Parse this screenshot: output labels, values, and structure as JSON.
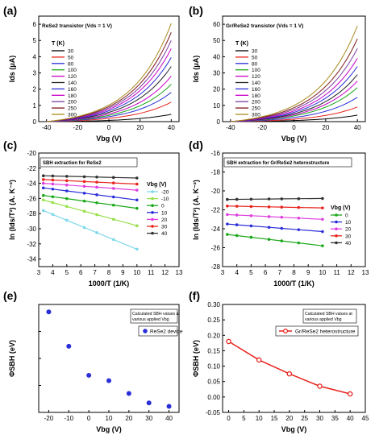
{
  "chart_data": [
    {
      "panel": "(a)",
      "type": "line",
      "annotation": "ReSe2 transistor (Vds = 1 V)",
      "legend_title": "T (K)",
      "legend_position": "top-left",
      "xlabel": "Vbg (V)",
      "ylabel": "Ids (μA)",
      "xlim": [
        -45,
        45
      ],
      "ylim": [
        0,
        6.5
      ],
      "xticks": [
        -40,
        -20,
        0,
        20,
        40
      ],
      "yticks": [
        0,
        1,
        2,
        3,
        4,
        5,
        6
      ],
      "x_start": -40,
      "x_end": 40,
      "series": [
        {
          "name": "30",
          "color": "#000000",
          "end": 0.45
        },
        {
          "name": "50",
          "color": "#e8231c",
          "end": 1.2
        },
        {
          "name": "80",
          "color": "#2a2fd8",
          "end": 1.8
        },
        {
          "name": "100",
          "color": "#1aa81a",
          "end": 2.3
        },
        {
          "name": "120",
          "color": "#c800c8",
          "end": 2.8
        },
        {
          "name": "140",
          "color": "#222222",
          "end": 3.4
        },
        {
          "name": "160",
          "color": "#2a2fd8",
          "end": 3.95
        },
        {
          "name": "180",
          "color": "#c800c8",
          "end": 4.5
        },
        {
          "name": "200",
          "color": "#7a3c9e",
          "end": 5.0
        },
        {
          "name": "250",
          "color": "#7c1a1a",
          "end": 5.5
        },
        {
          "name": "300",
          "color": "#a88a1e",
          "end": 6.05
        }
      ]
    },
    {
      "panel": "(b)",
      "type": "line",
      "annotation": "Gr/ReSe2 transistor (Vds = 1 V)",
      "legend_title": "T (K)",
      "legend_position": "top-left",
      "xlabel": "Vbg (V)",
      "ylabel": "Ids (μA)",
      "xlim": [
        -45,
        45
      ],
      "ylim": [
        0,
        65
      ],
      "xticks": [
        -40,
        -20,
        0,
        20,
        40
      ],
      "yticks": [
        0,
        10,
        20,
        30,
        40,
        50,
        60
      ],
      "x_start": -40,
      "x_end": 40,
      "series": [
        {
          "name": "30",
          "color": "#000000",
          "end": 4
        },
        {
          "name": "50",
          "color": "#e8231c",
          "end": 9
        },
        {
          "name": "80",
          "color": "#2a2fd8",
          "end": 15
        },
        {
          "name": "100",
          "color": "#1aa81a",
          "end": 21
        },
        {
          "name": "120",
          "color": "#c800c8",
          "end": 25
        },
        {
          "name": "140",
          "color": "#222222",
          "end": 29
        },
        {
          "name": "160",
          "color": "#2a2fd8",
          "end": 34
        },
        {
          "name": "180",
          "color": "#c800c8",
          "end": 39
        },
        {
          "name": "200",
          "color": "#7a3c9e",
          "end": 45
        },
        {
          "name": "250",
          "color": "#7c1a1a",
          "end": 51
        },
        {
          "name": "300",
          "color": "#a88a1e",
          "end": 59
        }
      ]
    },
    {
      "panel": "(c)",
      "type": "line",
      "annotation": "SBH extraction for ReSe2",
      "legend_title": "Vbg (V)",
      "legend_position": "right",
      "xlabel": "1000/T (1/K)",
      "ylabel": "ln (Ids/T²) (A. K⁻²)",
      "xlim": [
        3,
        13
      ],
      "ylim": [
        -35,
        -20
      ],
      "xticks": [
        3,
        4,
        5,
        6,
        7,
        8,
        9,
        10,
        11,
        12,
        13
      ],
      "yticks": [
        -34,
        -32,
        -30,
        -28,
        -26,
        -24,
        -22,
        -20
      ],
      "x": [
        3.33,
        4.0,
        5.0,
        6.25,
        7.14,
        8.33,
        10.0
      ],
      "series": [
        {
          "name": "-20",
          "color": "#7fd8ea",
          "start": -27.6,
          "end": -32.7
        },
        {
          "name": "-10",
          "color": "#96e04a",
          "start": -26.2,
          "end": -29.6
        },
        {
          "name": "0",
          "color": "#1aa81a",
          "start": -25.6,
          "end": -27.3
        },
        {
          "name": "10",
          "color": "#2a2fd8",
          "start": -24.6,
          "end": -26.2
        },
        {
          "name": "20",
          "color": "#e040e0",
          "start": -24.0,
          "end": -24.9
        },
        {
          "name": "30",
          "color": "#e8231c",
          "start": -23.5,
          "end": -24.1
        },
        {
          "name": "40",
          "color": "#333333",
          "start": -23.0,
          "end": -23.3
        }
      ]
    },
    {
      "panel": "(d)",
      "type": "line",
      "annotation": "SBH extraction for Gr/ReSe2 heterostructure",
      "legend_title": "Vbg (V)",
      "legend_position": "right",
      "xlabel": "1000/T (1/K)",
      "ylabel": "ln (Ids/T²) (A. K⁻²)",
      "xlim": [
        3,
        13
      ],
      "ylim": [
        -28,
        -16
      ],
      "xticks": [
        3,
        4,
        5,
        6,
        7,
        8,
        9,
        10,
        11,
        12,
        13
      ],
      "yticks": [
        -28,
        -26,
        -24,
        -22,
        -20,
        -18,
        -16
      ],
      "x": [
        3.33,
        4.0,
        5.0,
        6.25,
        7.14,
        8.33,
        10.0
      ],
      "series": [
        {
          "name": "0",
          "color": "#1aa81a",
          "start": -24.6,
          "end": -25.8
        },
        {
          "name": "10",
          "color": "#2a2fd8",
          "start": -23.5,
          "end": -24.3
        },
        {
          "name": "20",
          "color": "#e040e0",
          "start": -22.5,
          "end": -23.0
        },
        {
          "name": "30",
          "color": "#e8231c",
          "start": -21.6,
          "end": -21.8
        },
        {
          "name": "40",
          "color": "#333333",
          "start": -20.9,
          "end": -20.8
        }
      ]
    },
    {
      "panel": "(e)",
      "type": "scatter",
      "annotation": "Calculated SBH values at various applied Vbg",
      "legend": [
        "ReSe2 device"
      ],
      "legend_position": "top-right",
      "xlabel": "Vbg (V)",
      "ylabel": "ΦSBH (eV)",
      "xlim": [
        -25,
        45
      ],
      "ylim": [
        0,
        0.8
      ],
      "xticks": [
        -20,
        -10,
        0,
        10,
        20,
        30,
        40
      ],
      "yticks": [],
      "color": "#2a2fd8",
      "series": [
        {
          "name": "ReSe2 device",
          "x": [
            -20,
            -10,
            0,
            10,
            20,
            30,
            40
          ],
          "y": [
            0.745,
            0.49,
            0.275,
            0.235,
            0.14,
            0.07,
            0.045
          ]
        }
      ]
    },
    {
      "panel": "(f)",
      "type": "line",
      "annotation": "Calculated SBH values at various applied Vbg",
      "legend": [
        "Gr/ReSe2 heterostructure"
      ],
      "legend_position": "top-right",
      "xlabel": "Vbg (V)",
      "ylabel": "ΦSBH (eV)",
      "xlim": [
        -2,
        45
      ],
      "ylim": [
        -0.05,
        0.3
      ],
      "xticks": [
        0,
        5,
        10,
        15,
        20,
        25,
        30,
        35,
        40,
        45
      ],
      "yticks": [
        -0.05,
        0.0,
        0.05,
        0.1,
        0.15,
        0.2,
        0.25,
        0.3
      ],
      "color": "#e8231c",
      "series": [
        {
          "name": "Gr/ReSe2 heterostructure",
          "x": [
            0,
            10,
            20,
            30,
            40
          ],
          "y": [
            0.18,
            0.12,
            0.075,
            0.035,
            0.01
          ]
        }
      ]
    }
  ]
}
